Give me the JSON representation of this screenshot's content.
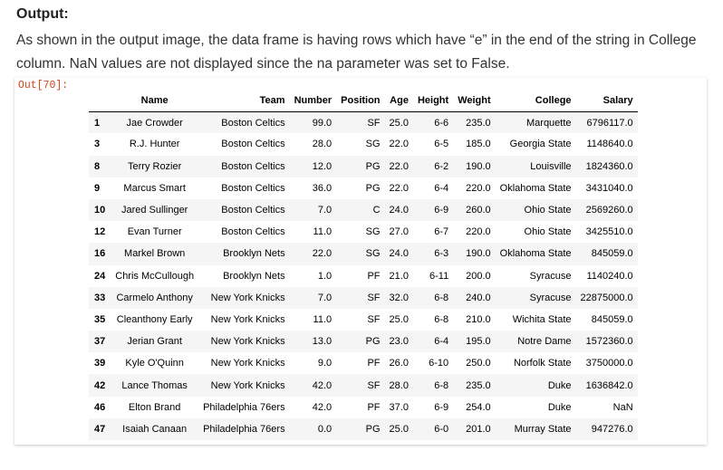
{
  "header": {
    "title": "Output:",
    "description": "As shown in the output image, the data frame is having rows which have “e” in the end of the string in College column. NaN values are not displayed since the na parameter was set to False."
  },
  "cell": {
    "prompt": "Out[70]:"
  },
  "table": {
    "columns": [
      "",
      "Name",
      "Team",
      "Number",
      "Position",
      "Age",
      "Height",
      "Weight",
      "College",
      "Salary"
    ],
    "rows": [
      [
        "1",
        "Jae Crowder",
        "Boston Celtics",
        "99.0",
        "SF",
        "25.0",
        "6-6",
        "235.0",
        "Marquette",
        "6796117.0"
      ],
      [
        "3",
        "R.J. Hunter",
        "Boston Celtics",
        "28.0",
        "SG",
        "22.0",
        "6-5",
        "185.0",
        "Georgia State",
        "1148640.0"
      ],
      [
        "8",
        "Terry Rozier",
        "Boston Celtics",
        "12.0",
        "PG",
        "22.0",
        "6-2",
        "190.0",
        "Louisville",
        "1824360.0"
      ],
      [
        "9",
        "Marcus Smart",
        "Boston Celtics",
        "36.0",
        "PG",
        "22.0",
        "6-4",
        "220.0",
        "Oklahoma State",
        "3431040.0"
      ],
      [
        "10",
        "Jared Sullinger",
        "Boston Celtics",
        "7.0",
        "C",
        "24.0",
        "6-9",
        "260.0",
        "Ohio State",
        "2569260.0"
      ],
      [
        "12",
        "Evan Turner",
        "Boston Celtics",
        "11.0",
        "SG",
        "27.0",
        "6-7",
        "220.0",
        "Ohio State",
        "3425510.0"
      ],
      [
        "16",
        "Markel Brown",
        "Brooklyn Nets",
        "22.0",
        "SG",
        "24.0",
        "6-3",
        "190.0",
        "Oklahoma State",
        "845059.0"
      ],
      [
        "24",
        "Chris McCullough",
        "Brooklyn Nets",
        "1.0",
        "PF",
        "21.0",
        "6-11",
        "200.0",
        "Syracuse",
        "1140240.0"
      ],
      [
        "33",
        "Carmelo Anthony",
        "New York Knicks",
        "7.0",
        "SF",
        "32.0",
        "6-8",
        "240.0",
        "Syracuse",
        "22875000.0"
      ],
      [
        "35",
        "Cleanthony Early",
        "New York Knicks",
        "11.0",
        "SF",
        "25.0",
        "6-8",
        "210.0",
        "Wichita State",
        "845059.0"
      ],
      [
        "37",
        "Jerian Grant",
        "New York Knicks",
        "13.0",
        "PG",
        "23.0",
        "6-4",
        "195.0",
        "Notre Dame",
        "1572360.0"
      ],
      [
        "39",
        "Kyle O'Quinn",
        "New York Knicks",
        "9.0",
        "PF",
        "26.0",
        "6-10",
        "250.0",
        "Norfolk State",
        "3750000.0"
      ],
      [
        "42",
        "Lance Thomas",
        "New York Knicks",
        "42.0",
        "SF",
        "28.0",
        "6-8",
        "235.0",
        "Duke",
        "1636842.0"
      ],
      [
        "46",
        "Elton Brand",
        "Philadelphia 76ers",
        "42.0",
        "PF",
        "37.0",
        "6-9",
        "254.0",
        "Duke",
        "NaN"
      ],
      [
        "47",
        "Isaiah Canaan",
        "Philadelphia 76ers",
        "0.0",
        "PG",
        "25.0",
        "6-0",
        "201.0",
        "Murray State",
        "947276.0"
      ]
    ]
  }
}
